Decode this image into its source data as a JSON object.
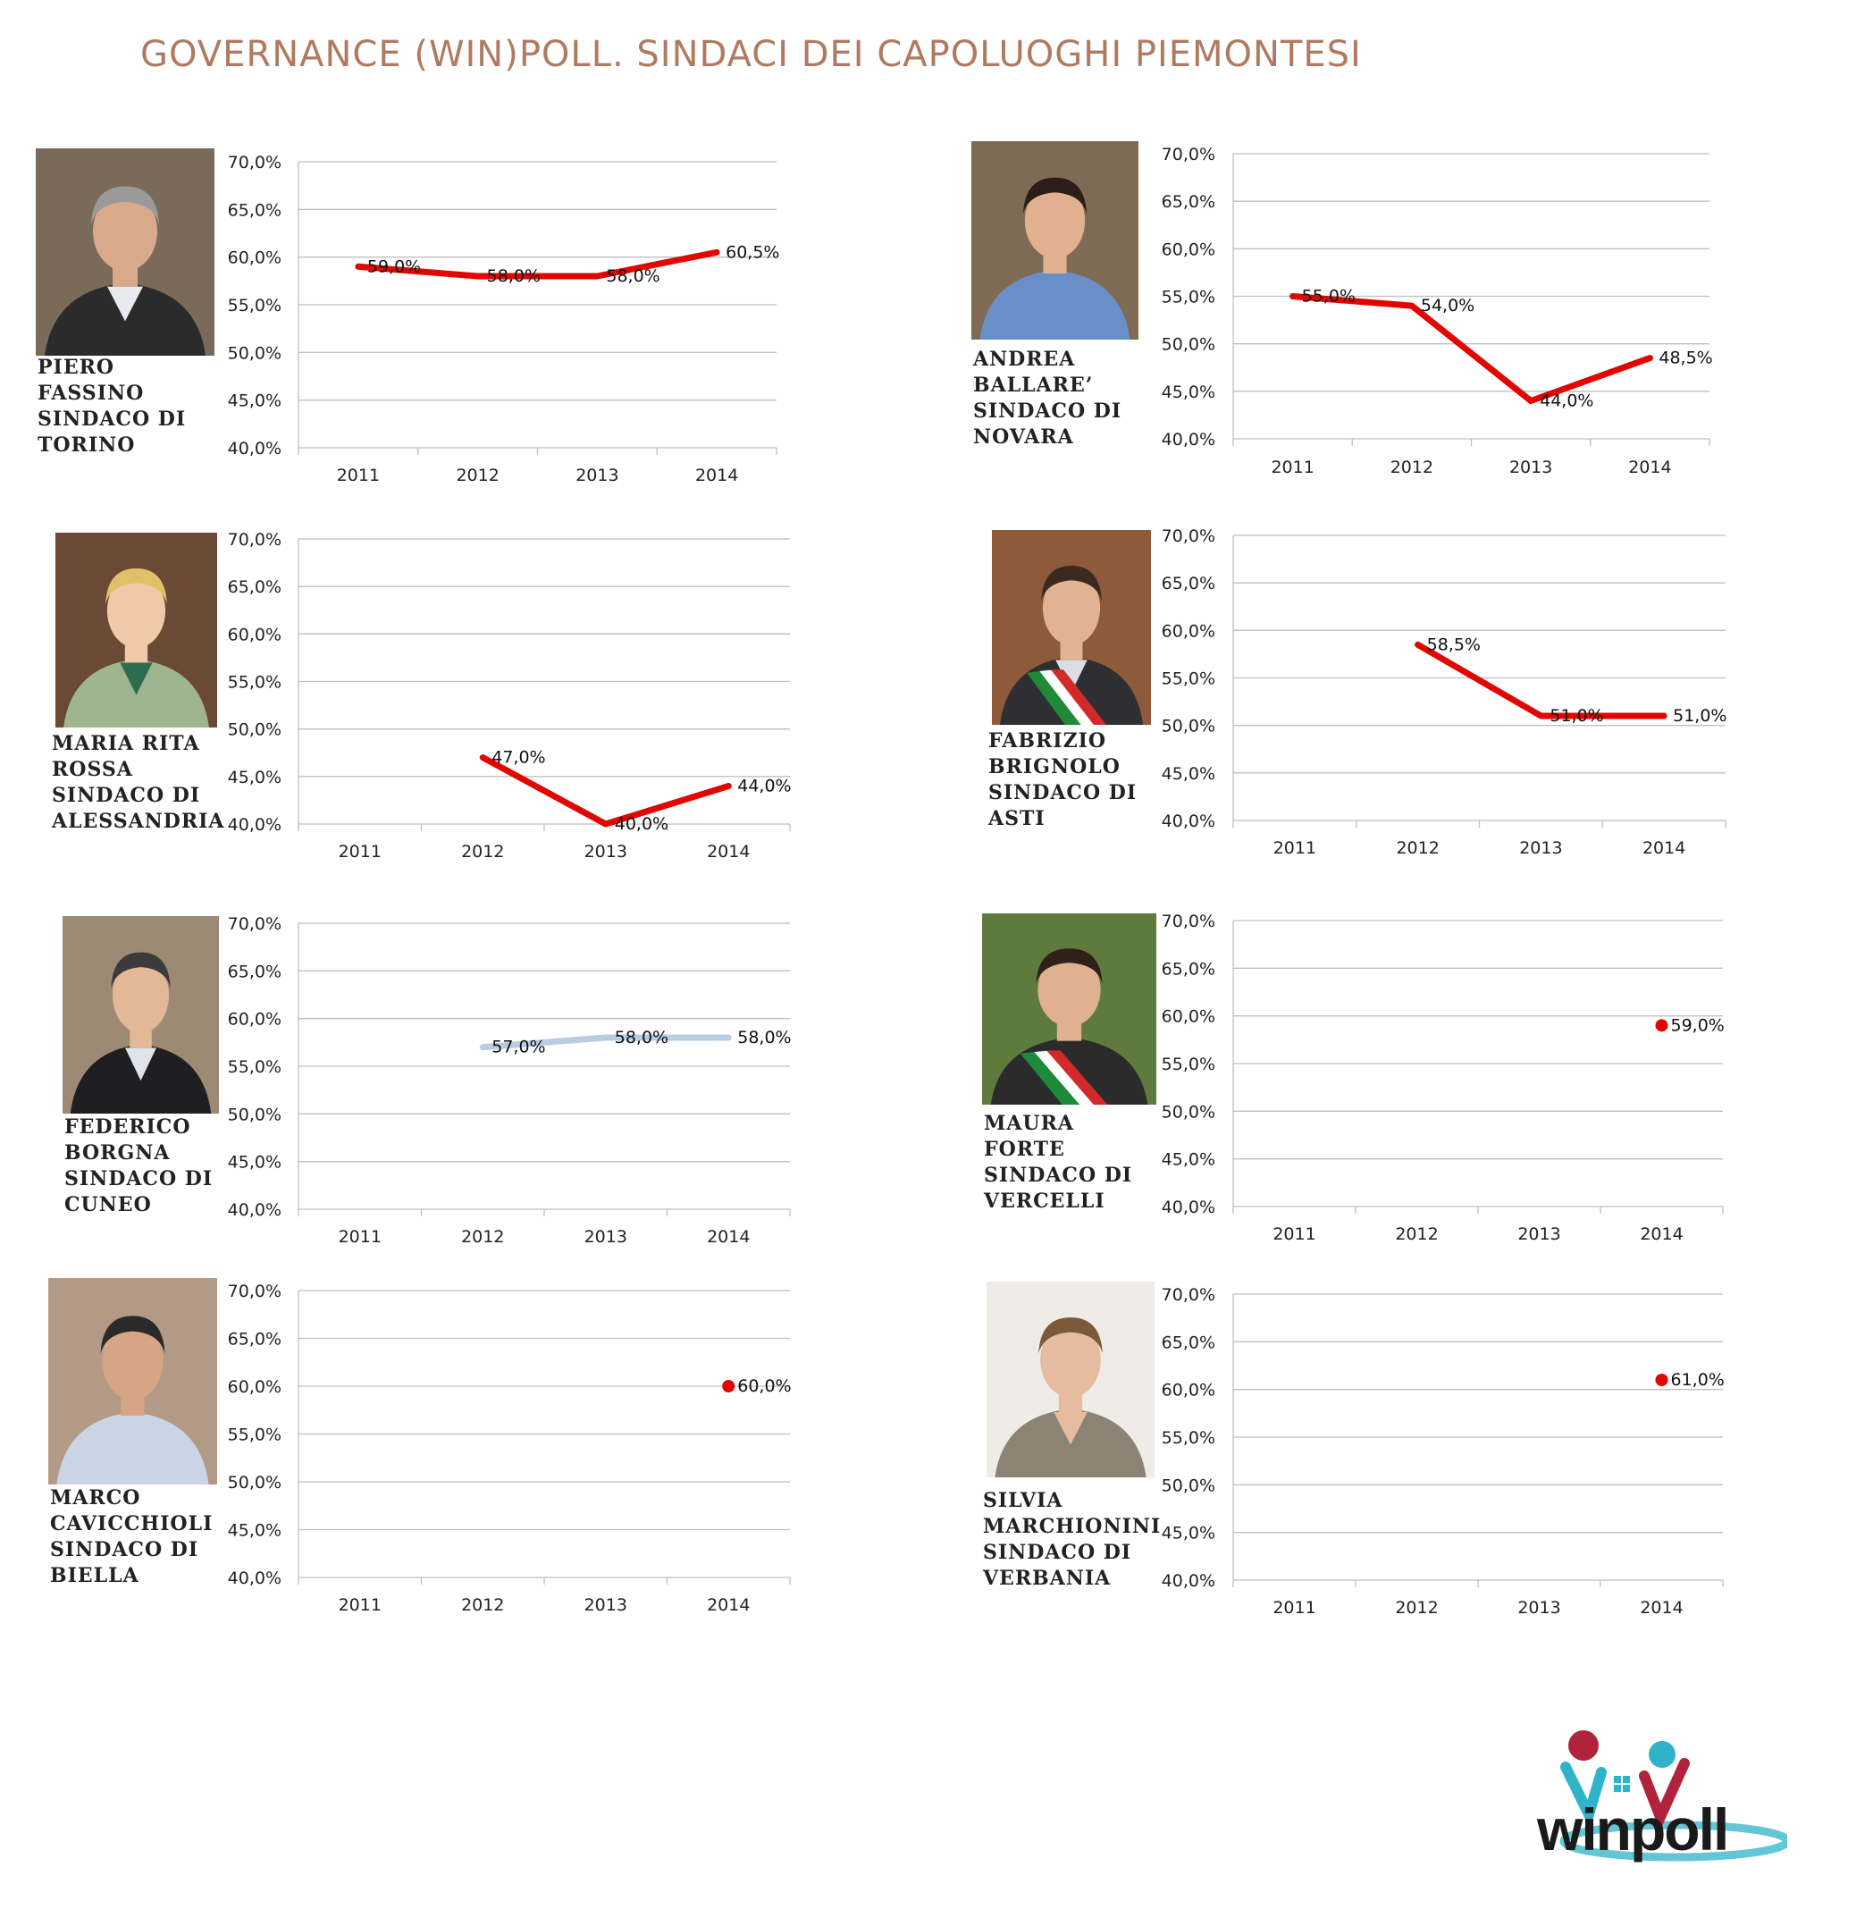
{
  "title": "GOVERNANCE (WIN)POLL. SINDACI DEI CAPOLUOGHI PIEMONTESI",
  "colors": {
    "title": "#B07A61",
    "line_red": "#E10600",
    "line_blue": "#B8CCE4",
    "grid": "#BFBFBF"
  },
  "logo": {
    "text": "winpoll",
    "icon": "winpoll-logo"
  },
  "panels": [
    {
      "id": "torino",
      "caption": [
        "PIERO",
        "FASSINO",
        "SINDACO DI",
        "TORINO"
      ],
      "chart_data": {
        "type": "line",
        "categories": [
          "2011",
          "2012",
          "2013",
          "2014"
        ],
        "series": [
          {
            "values": [
              59.0,
              58.0,
              58.0,
              60.5
            ],
            "color": "#E10600"
          }
        ],
        "data_labels": [
          "59,0%",
          "58,0%",
          "58,0%",
          "60,5%"
        ],
        "y_ticks": [
          "70,0%",
          "65,0%",
          "60,0%",
          "55,0%",
          "50,0%",
          "45,0%",
          "40,0%"
        ],
        "ylim": [
          40,
          70
        ],
        "grid": true
      }
    },
    {
      "id": "novara",
      "caption": [
        "ANDREA",
        "BALLARE’",
        "SINDACO DI",
        "NOVARA"
      ],
      "chart_data": {
        "type": "line",
        "categories": [
          "2011",
          "2012",
          "2013",
          "2014"
        ],
        "series": [
          {
            "values": [
              55.0,
              54.0,
              44.0,
              48.5
            ],
            "color": "#E10600"
          }
        ],
        "data_labels": [
          "55,0%",
          "54,0%",
          "44,0%",
          "48,5%"
        ],
        "y_ticks": [
          "70,0%",
          "65,0%",
          "60,0%",
          "55,0%",
          "50,0%",
          "45,0%",
          "40,0%"
        ],
        "ylim": [
          40,
          70
        ],
        "grid": true
      }
    },
    {
      "id": "alessandria",
      "caption": [
        "MARIA RITA",
        "ROSSA",
        "SINDACO DI",
        "ALESSANDRIA"
      ],
      "chart_data": {
        "type": "line",
        "categories": [
          "2011",
          "2012",
          "2013",
          "2014"
        ],
        "series": [
          {
            "values": [
              null,
              47.0,
              40.0,
              44.0
            ],
            "color": "#E10600"
          }
        ],
        "data_labels": [
          null,
          "47,0%",
          "40,0%",
          "44,0%"
        ],
        "y_ticks": [
          "70,0%",
          "65,0%",
          "60,0%",
          "55,0%",
          "50,0%",
          "45,0%",
          "40,0%"
        ],
        "ylim": [
          40,
          70
        ],
        "grid": true
      }
    },
    {
      "id": "asti",
      "caption": [
        "FABRIZIO",
        "BRIGNOLO",
        "SINDACO DI",
        "ASTI"
      ],
      "chart_data": {
        "type": "line",
        "categories": [
          "2011",
          "2012",
          "2013",
          "2014"
        ],
        "series": [
          {
            "values": [
              null,
              58.5,
              51.0,
              51.0
            ],
            "color": "#E10600"
          }
        ],
        "data_labels": [
          null,
          "58,5%",
          "51,0%",
          "51,0%"
        ],
        "y_ticks": [
          "70,0%",
          "65,0%",
          "60,0%",
          "55,0%",
          "50,0%",
          "45,0%",
          "40,0%"
        ],
        "ylim": [
          40,
          70
        ],
        "grid": true
      }
    },
    {
      "id": "cuneo",
      "caption": [
        "FEDERICO",
        "BORGNA",
        "SINDACO DI",
        "CUNEO"
      ],
      "chart_data": {
        "type": "line",
        "categories": [
          "2011",
          "2012",
          "2013",
          "2014"
        ],
        "series": [
          {
            "values": [
              null,
              57.0,
              58.0,
              58.0
            ],
            "color": "#B8CCE4"
          }
        ],
        "data_labels": [
          null,
          "57,0%",
          "58,0%",
          "58,0%"
        ],
        "y_ticks": [
          "70,0%",
          "65,0%",
          "60,0%",
          "55,0%",
          "50,0%",
          "45,0%",
          "40,0%"
        ],
        "ylim": [
          40,
          70
        ],
        "grid": true
      }
    },
    {
      "id": "vercelli",
      "caption": [
        "MAURA",
        "FORTE",
        "SINDACO DI",
        "VERCELLI"
      ],
      "chart_data": {
        "type": "line",
        "categories": [
          "2011",
          "2012",
          "2013",
          "2014"
        ],
        "series": [
          {
            "values": [
              null,
              null,
              null,
              59.0
            ],
            "color": "#E10600"
          }
        ],
        "data_labels": [
          null,
          null,
          null,
          "59,0%"
        ],
        "y_ticks": [
          "70,0%",
          "65,0%",
          "60,0%",
          "55,0%",
          "50,0%",
          "45,0%",
          "40,0%"
        ],
        "ylim": [
          40,
          70
        ],
        "grid": true
      }
    },
    {
      "id": "biella",
      "caption": [
        "MARCO",
        "CAVICCHIOLI",
        "SINDACO DI",
        "BIELLA"
      ],
      "chart_data": {
        "type": "line",
        "categories": [
          "2011",
          "2012",
          "2013",
          "2014"
        ],
        "series": [
          {
            "values": [
              null,
              null,
              null,
              60.0
            ],
            "color": "#E10600"
          }
        ],
        "data_labels": [
          null,
          null,
          null,
          "60,0%"
        ],
        "y_ticks": [
          "70,0%",
          "65,0%",
          "60,0%",
          "55,0%",
          "50,0%",
          "45,0%",
          "40,0%"
        ],
        "ylim": [
          40,
          70
        ],
        "grid": true
      }
    },
    {
      "id": "verbania",
      "caption": [
        "SILVIA",
        "MARCHIONINI",
        "SINDACO DI",
        "VERBANIA"
      ],
      "chart_data": {
        "type": "line",
        "categories": [
          "2011",
          "2012",
          "2013",
          "2014"
        ],
        "series": [
          {
            "values": [
              null,
              null,
              null,
              61.0
            ],
            "color": "#E10600"
          }
        ],
        "data_labels": [
          null,
          null,
          null,
          "61,0%"
        ],
        "y_ticks": [
          "70,0%",
          "65,0%",
          "60,0%",
          "55,0%",
          "50,0%",
          "45,0%",
          "40,0%"
        ],
        "ylim": [
          40,
          70
        ],
        "grid": true
      }
    }
  ]
}
